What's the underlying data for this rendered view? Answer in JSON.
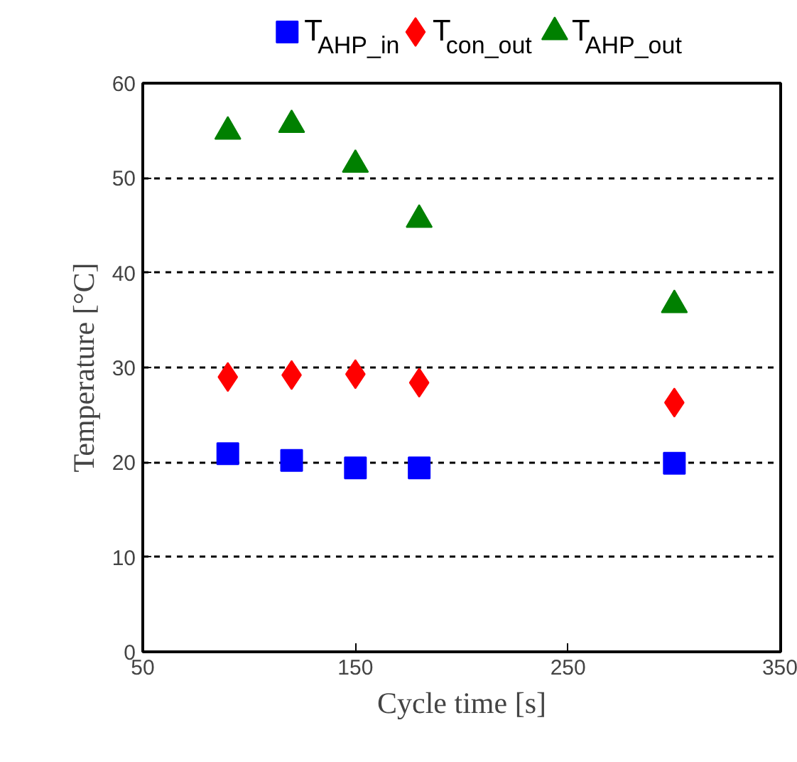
{
  "chart_data": {
    "type": "scatter",
    "xlabel": "Cycle time [s]",
    "ylabel": "Temperature [°C]",
    "xlim": [
      50,
      350
    ],
    "xticks": [
      50,
      150,
      250,
      350
    ],
    "ylim": [
      0,
      60
    ],
    "yticks": [
      0,
      10,
      20,
      30,
      40,
      50,
      60
    ],
    "grid": "y",
    "legend": "top",
    "x": [
      90,
      120,
      150,
      180,
      300
    ],
    "series": [
      {
        "name": "T$_{AHP_in}$",
        "color": "#0000ff",
        "marker": "square",
        "values": [
          20.9,
          20.2,
          19.4,
          19.4,
          19.9
        ]
      },
      {
        "name": "T$_{con_out}$",
        "color": "#ff0000",
        "marker": "diamond",
        "values": [
          29.0,
          29.2,
          29.3,
          28.4,
          26.3
        ]
      },
      {
        "name": "T$_{AHP_out}$",
        "color": "#008000",
        "marker": "triangle",
        "values": [
          54.9,
          55.6,
          51.4,
          45.6,
          36.6
        ]
      }
    ]
  }
}
